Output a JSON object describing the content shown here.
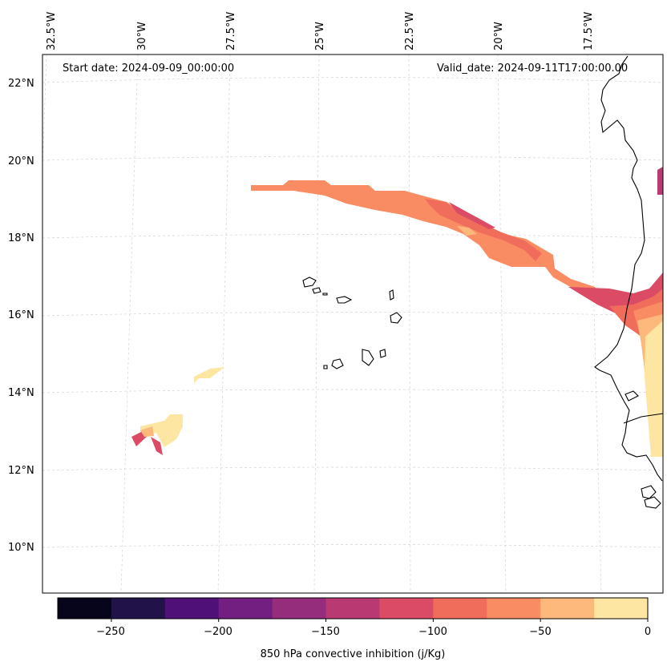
{
  "map": {
    "start_date": "Start date: 2024-09-09_00:00:00",
    "valid_date": "Valid_date: 2024-09-11T17:00:00.00",
    "lat_labels": [
      "22°N",
      "20°N",
      "18°N",
      "16°N",
      "14°N",
      "12°N",
      "10°N"
    ],
    "lon_labels": [
      "32.5°W",
      "30°W",
      "27.5°W",
      "25°W",
      "22.5°W",
      "20°W",
      "17.5°W"
    ],
    "colorbar": {
      "label": "850 hPa convective inhibition (j/Kg)",
      "ticks": [
        "−250",
        "−200",
        "−150",
        "−100",
        "−50",
        "0"
      ],
      "range": [
        -275,
        0
      ],
      "colors": [
        "#07051b",
        "#211349",
        "#4f1078",
        "#731e81",
        "#962d7c",
        "#b93a72",
        "#db4b66",
        "#f06d5c",
        "#fa8c64",
        "#fdb87c",
        "#fde5a2"
      ]
    }
  }
}
